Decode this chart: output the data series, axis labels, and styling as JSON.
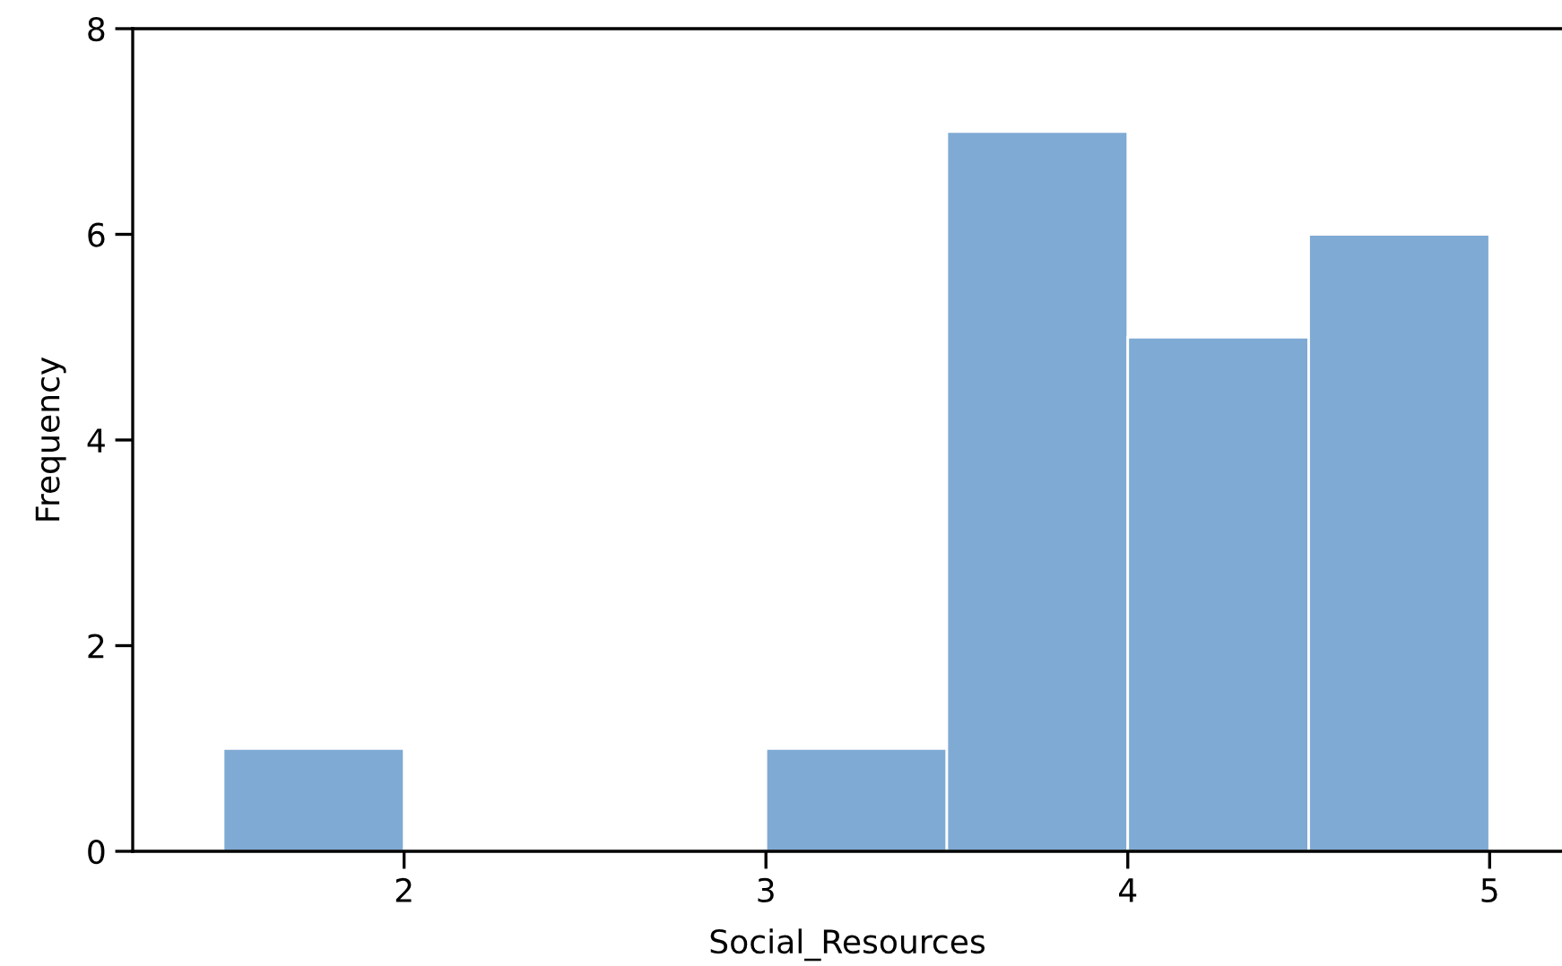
{
  "chart_data": {
    "type": "histogram",
    "xlabel": "Social_Resources",
    "ylabel": "Frequency",
    "bins": [
      1.5,
      2.0,
      2.5,
      3.0,
      3.5,
      4.0,
      4.5,
      5.0
    ],
    "values": [
      1,
      0,
      0,
      1,
      7,
      5,
      6
    ],
    "color": "#7faad4",
    "xlim": [
      1.25,
      5.2
    ],
    "ylim": [
      0,
      8
    ],
    "xticks": [
      2,
      3,
      4,
      5
    ],
    "yticks": [
      0,
      2,
      4,
      6,
      8
    ]
  }
}
